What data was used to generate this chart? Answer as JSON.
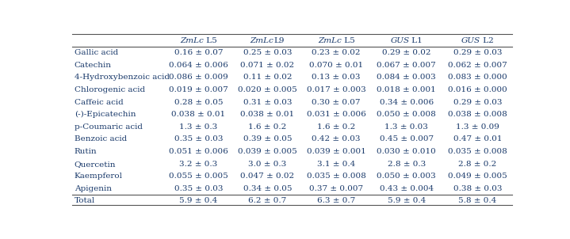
{
  "col_headers": [
    {
      "italic": "ZmLc",
      "normal": " L5"
    },
    {
      "italic": "ZmLc",
      "normal": "L9"
    },
    {
      "italic": "ZmLc",
      "normal": " L5"
    },
    {
      "italic": "GUS",
      "normal": " L1"
    },
    {
      "italic": "GUS",
      "normal": " L2"
    }
  ],
  "rows": [
    "Gallic acid",
    "Catechin",
    "4-Hydroxybenzoic acid",
    "Chlorogenic acid",
    "Caffeic acid",
    "(-)-Epicatechin",
    "p-Coumaric acid",
    "Benzoic acid",
    "Rutin",
    "Quercetin",
    "Kaempferol",
    "Apigenin",
    "Total"
  ],
  "data": [
    [
      "0.16 ± 0.07",
      "0.25 ± 0.03",
      "0.23 ± 0.02",
      "0.29 ± 0.02",
      "0.29 ± 0.03"
    ],
    [
      "0.064 ± 0.006",
      "0.071 ± 0.02",
      "0.070 ± 0.01",
      "0.067 ± 0.007",
      "0.062 ± 0.007"
    ],
    [
      "0.086 ± 0.009",
      "0.11 ± 0.02",
      "0.13 ± 0.03",
      "0.084 ± 0.003",
      "0.083 ± 0.000"
    ],
    [
      "0.019 ± 0.007",
      "0.020 ± 0.005",
      "0.017 ± 0.003",
      "0.018 ± 0.001",
      "0.016 ± 0.000"
    ],
    [
      "0.28 ± 0.05",
      "0.31 ± 0.03",
      "0.30 ± 0.07",
      "0.34 ± 0.006",
      "0.29 ± 0.03"
    ],
    [
      "0.038 ± 0.01",
      "0.038 ± 0.01",
      "0.031 ± 0.006",
      "0.050 ± 0.008",
      "0.038 ± 0.008"
    ],
    [
      "1.3 ± 0.3",
      "1.6 ± 0.2",
      "1.6 ± 0.2",
      "1.3 ± 0.03",
      "1.3 ± 0.09"
    ],
    [
      "0.35 ± 0.03",
      "0.39 ± 0.05",
      "0.42 ± 0.03",
      "0.45 ± 0.007",
      "0.47 ± 0.01"
    ],
    [
      "0.051 ± 0.006",
      "0.039 ± 0.005",
      "0.039 ± 0.001",
      "0.030 ± 0.010",
      "0.035 ± 0.008"
    ],
    [
      "3.2 ± 0.3",
      "3.0 ± 0.3",
      "3.1 ± 0.4",
      "2.8 ± 0.3",
      "2.8 ± 0.2"
    ],
    [
      "0.055 ± 0.005",
      "0.047 ± 0.02",
      "0.035 ± 0.008",
      "0.050 ± 0.003",
      "0.049 ± 0.005"
    ],
    [
      "0.35 ± 0.03",
      "0.34 ± 0.05",
      "0.37 ± 0.007",
      "0.43 ± 0.004",
      "0.38 ± 0.03"
    ],
    [
      "5.9 ± 0.4",
      "6.2 ± 0.7",
      "6.3 ± 0.7",
      "5.9 ± 0.4",
      "5.8 ± 0.4"
    ]
  ],
  "text_color": "#1a3a6b",
  "border_color": "#555555",
  "font_size": 7.5,
  "header_font_size": 7.5,
  "fig_width": 7.19,
  "fig_height": 3.02,
  "dpi": 100
}
